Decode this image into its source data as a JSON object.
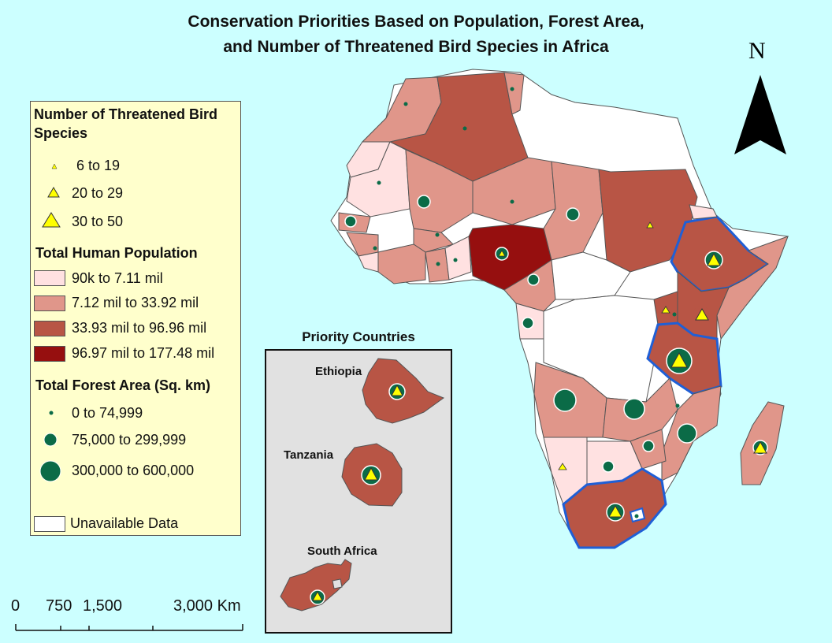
{
  "title_line1": "Conservation Priorities Based on Population, Forest Area,",
  "title_line2": "and Number of Threatened Bird Species in Africa",
  "north_label": "N",
  "legend": {
    "birds_heading": "Number of Threatened Bird Species",
    "birds": [
      "6 to 19",
      "20 to 29",
      "30 to 50"
    ],
    "population_heading": "Total Human Population",
    "population": [
      {
        "label": "90k to 7.11 mil",
        "color": "#ffe1e1"
      },
      {
        "label": "7.12 mil to 33.92 mil",
        "color": "#e0968a"
      },
      {
        "label": "33.93 mil to 96.96 mil",
        "color": "#b85545"
      },
      {
        "label": "96.97 mil to 177.48 mil",
        "color": "#960f0f"
      }
    ],
    "forest_heading": "Total Forest Area (Sq. km)",
    "forest": [
      "0 to 74,999",
      "75,000 to 299,999",
      "300,000 to 600,000"
    ],
    "unavailable": "Unavailable Data"
  },
  "colors": {
    "ocean": "#ccffff",
    "legend_bg": "#ffffcc",
    "inset_bg": "#e1e1e1",
    "unavailable": "#ffffff",
    "forest_symbol": "#0b6b47",
    "bird_symbol": "#ffff00",
    "priority_outline": "#1f5fd6"
  },
  "inset": {
    "title": "Priority Countries",
    "countries": [
      "Ethiopia",
      "Tanzania",
      "South Africa"
    ]
  },
  "scale": {
    "labels": [
      "0",
      "750",
      "1,500",
      "3,000 Km"
    ]
  }
}
